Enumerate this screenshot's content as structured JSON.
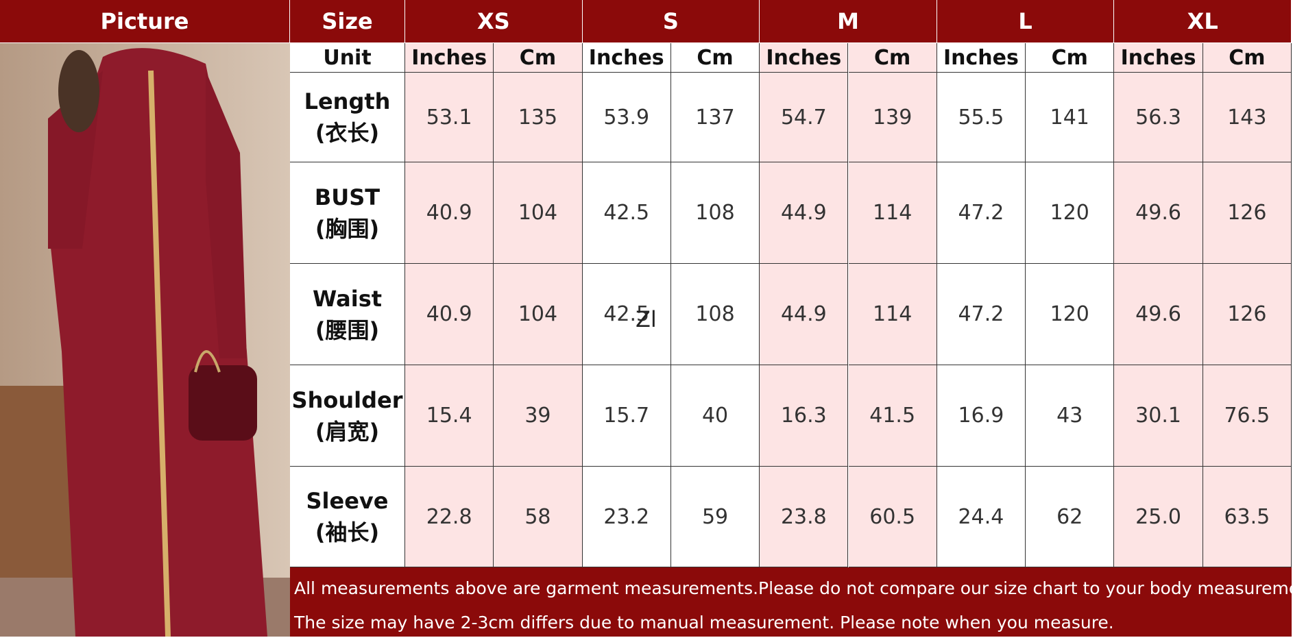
{
  "header": {
    "picture": "Picture",
    "size": "Size",
    "sizes": [
      "XS",
      "S",
      "M",
      "L",
      "XL"
    ]
  },
  "unit_row": {
    "label": "Unit",
    "units": [
      "Inches",
      "Cm",
      "Inches",
      "Cm",
      "Inches",
      "Cm",
      "Inches",
      "Cm",
      "Inches",
      "Cm"
    ]
  },
  "rows": [
    {
      "name": "Length",
      "name_cn": "(衣长)",
      "values": [
        "53.1",
        "135",
        "53.9",
        "137",
        "54.7",
        "139",
        "55.5",
        "141",
        "56.3",
        "143"
      ]
    },
    {
      "name": "BUST",
      "name_cn": "(胸围)",
      "values": [
        "40.9",
        "104",
        "42.5",
        "108",
        "44.9",
        "114",
        "47.2",
        "120",
        "49.6",
        "126"
      ]
    },
    {
      "name": "Waist",
      "name_cn": "(腰围)",
      "values": [
        "40.9",
        "104",
        "42.5",
        "108",
        "44.9",
        "114",
        "47.2",
        "120",
        "49.6",
        "126"
      ]
    },
    {
      "name": "Shoulder",
      "name_cn": "(肩宽)",
      "values": [
        "15.4",
        "39",
        "15.7",
        "40",
        "16.3",
        "41.5",
        "16.9",
        "43",
        "30.1",
        "76.5"
      ]
    },
    {
      "name": "Sleeve",
      "name_cn": "(袖长)",
      "values": [
        "22.8",
        "58",
        "23.2",
        "59",
        "23.8",
        "60.5",
        "24.4",
        "62",
        "25.0",
        "63.5"
      ]
    }
  ],
  "stray_text": "Zl",
  "notes": [
    "All measurements above are garment measurements.Please do not compare our size chart to your body measurements.",
    "The size may have 2-3cm differs due to manual measurement. Please note when you measure."
  ]
}
